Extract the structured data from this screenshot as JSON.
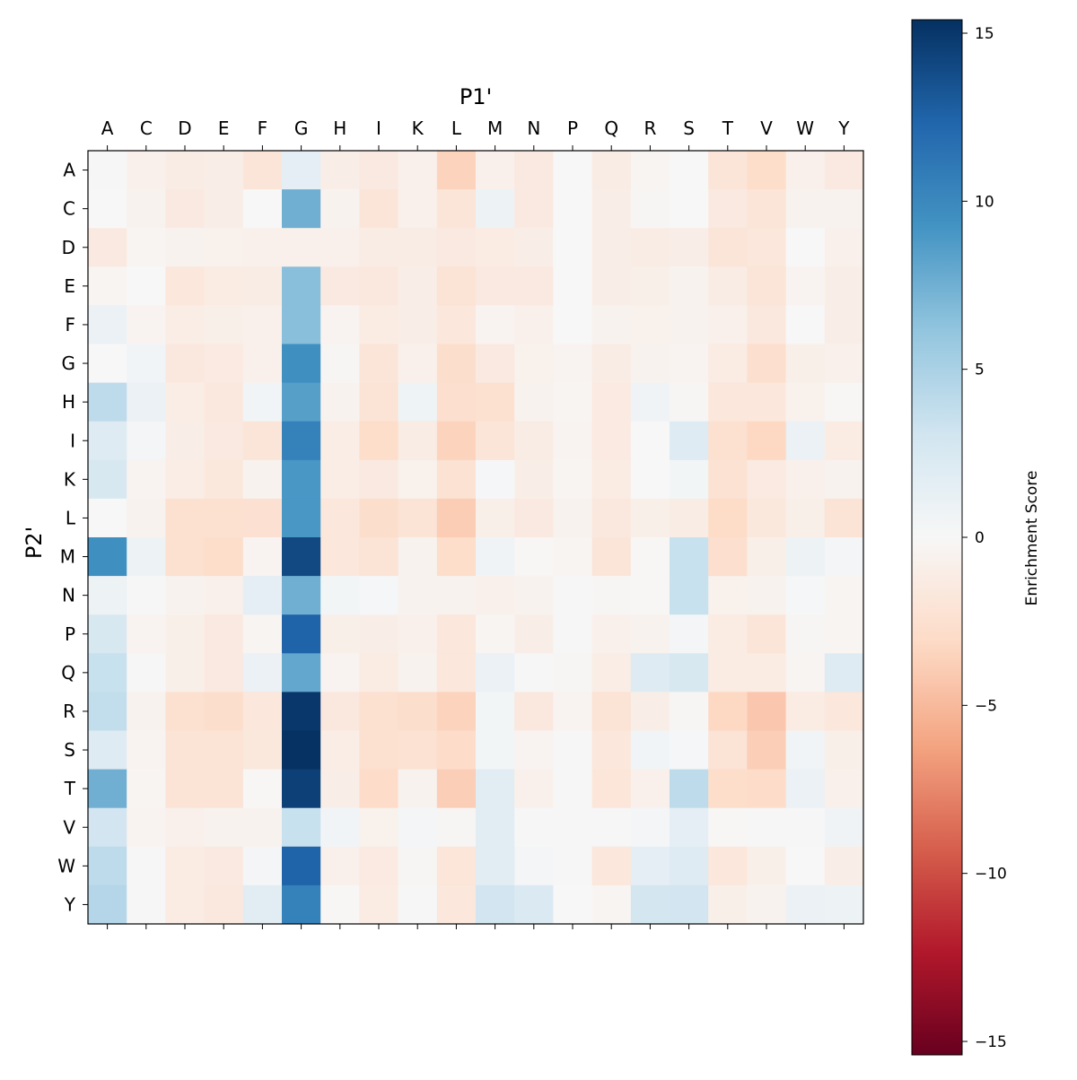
{
  "chart_data": {
    "type": "heatmap",
    "xlabel": "P1'",
    "ylabel": "P2'",
    "x_categories": [
      "A",
      "C",
      "D",
      "E",
      "F",
      "G",
      "H",
      "I",
      "K",
      "L",
      "M",
      "N",
      "P",
      "Q",
      "R",
      "S",
      "T",
      "V",
      "W",
      "Y"
    ],
    "y_categories": [
      "A",
      "C",
      "D",
      "E",
      "F",
      "G",
      "H",
      "I",
      "K",
      "L",
      "M",
      "N",
      "P",
      "Q",
      "R",
      "S",
      "T",
      "V",
      "W",
      "Y"
    ],
    "colormap": "RdBu",
    "vmin": -15.4,
    "vmax": 15.4,
    "colorbar": {
      "label": "Enrichment Score",
      "ticks": [
        15,
        10,
        5,
        0,
        -5,
        -10,
        -15
      ],
      "tick_labels": [
        "15",
        "10",
        "5",
        "0",
        "−5",
        "−10",
        "−15"
      ]
    },
    "values": [
      [
        0.1,
        -0.8,
        -1.2,
        -1.0,
        -2.0,
        1.5,
        -1.0,
        -1.5,
        -0.8,
        -3.5,
        -0.8,
        -1.5,
        0.0,
        -1.2,
        -0.3,
        0.0,
        -2.0,
        -2.8,
        -0.8,
        -1.5
      ],
      [
        0.0,
        -0.5,
        -1.5,
        -1.0,
        0.0,
        7.5,
        -0.5,
        -2.0,
        -0.8,
        -2.0,
        0.8,
        -1.5,
        0.0,
        -1.0,
        -0.2,
        0.0,
        -1.5,
        -2.0,
        -0.6,
        -0.5
      ],
      [
        -1.5,
        -0.3,
        -0.5,
        -0.7,
        -0.8,
        -0.8,
        -0.8,
        -1.2,
        -1.2,
        -1.5,
        -1.3,
        -1.0,
        0.0,
        -1.0,
        -1.2,
        -1.0,
        -2.0,
        -1.8,
        0.0,
        -0.8
      ],
      [
        -0.3,
        0.0,
        -1.8,
        -1.3,
        -1.2,
        6.5,
        -1.5,
        -1.6,
        -1.0,
        -2.2,
        -1.5,
        -1.5,
        0.0,
        -1.0,
        -0.9,
        -0.6,
        -1.2,
        -2.0,
        -0.4,
        -1.0
      ],
      [
        1.0,
        -0.4,
        -1.1,
        -0.9,
        -0.8,
        6.5,
        -0.4,
        -1.3,
        -1.0,
        -1.8,
        -0.4,
        -0.8,
        0.0,
        -0.6,
        -0.7,
        -0.5,
        -0.8,
        -1.6,
        0.0,
        -1.0
      ],
      [
        0.0,
        0.5,
        -1.6,
        -1.4,
        -0.8,
        9.5,
        -0.2,
        -2.0,
        -0.8,
        -2.7,
        -1.5,
        -0.7,
        -0.4,
        -1.2,
        -0.5,
        -0.4,
        -1.3,
        -2.6,
        -0.9,
        -0.8
      ],
      [
        4.0,
        1.0,
        -1.1,
        -1.6,
        0.5,
        8.5,
        -0.5,
        -2.1,
        0.7,
        -2.6,
        -2.5,
        -0.6,
        -0.3,
        -1.4,
        0.6,
        -0.2,
        -1.8,
        -1.8,
        -0.7,
        -0.1
      ],
      [
        2.0,
        0.3,
        -1.0,
        -1.5,
        -2.0,
        10.5,
        -1.1,
        -2.8,
        -1.2,
        -3.5,
        -2.0,
        -1.2,
        -0.4,
        -1.4,
        0.0,
        2.0,
        -2.5,
        -3.2,
        1.0,
        -1.3
      ],
      [
        2.5,
        -0.4,
        -1.1,
        -1.7,
        -0.5,
        9.0,
        -1.1,
        -1.5,
        -0.7,
        -2.3,
        0.2,
        -1.0,
        -0.3,
        -1.3,
        0.0,
        0.4,
        -2.3,
        -1.4,
        -0.8,
        -0.5
      ],
      [
        0.0,
        -0.5,
        -2.5,
        -2.5,
        -2.4,
        9.0,
        -1.8,
        -2.7,
        -2.2,
        -3.9,
        -0.9,
        -1.5,
        -0.6,
        -1.6,
        -0.9,
        -1.2,
        -3.0,
        -1.7,
        -0.9,
        -2.2
      ],
      [
        9.5,
        0.8,
        -2.5,
        -2.8,
        -0.4,
        14.0,
        -1.8,
        -2.2,
        -0.6,
        -2.8,
        0.6,
        -0.1,
        -0.3,
        -2.0,
        -0.1,
        3.5,
        -2.6,
        -0.9,
        0.8,
        0.3
      ],
      [
        0.8,
        0.1,
        -0.6,
        -0.8,
        1.5,
        7.5,
        0.4,
        0.2,
        -0.6,
        -0.5,
        -0.8,
        -0.5,
        0.1,
        -0.2,
        -0.1,
        3.5,
        -0.7,
        -0.6,
        0.2,
        -0.3
      ],
      [
        2.5,
        -0.4,
        -0.9,
        -1.5,
        -0.3,
        12.5,
        -0.9,
        -1.0,
        -0.8,
        -1.8,
        -0.3,
        -1.0,
        0.1,
        -0.8,
        -0.6,
        0.3,
        -1.3,
        -2.0,
        -0.2,
        -0.3
      ],
      [
        3.5,
        0.1,
        -0.9,
        -1.5,
        1.0,
        8.0,
        -0.4,
        -1.3,
        -0.6,
        -1.8,
        1.0,
        0.1,
        -0.2,
        -1.1,
        2.0,
        2.5,
        -1.3,
        -1.3,
        -0.3,
        2.0
      ],
      [
        3.8,
        -0.5,
        -2.5,
        -2.7,
        -1.8,
        15.0,
        -1.6,
        -2.5,
        -2.7,
        -3.5,
        0.4,
        -1.6,
        -0.4,
        -2.2,
        -1.0,
        -0.2,
        -3.2,
        -4.2,
        -1.3,
        -1.8
      ],
      [
        2.0,
        -0.4,
        -2.1,
        -2.2,
        -1.7,
        15.3,
        -1.1,
        -2.5,
        -2.3,
        -2.9,
        0.4,
        -0.4,
        0.1,
        -1.8,
        0.5,
        0.2,
        -2.2,
        -3.8,
        0.5,
        -0.9
      ],
      [
        7.5,
        -0.3,
        -2.1,
        -2.2,
        -0.1,
        14.5,
        -1.0,
        -2.9,
        -0.5,
        -3.8,
        1.8,
        -0.8,
        0.1,
        -1.9,
        -0.8,
        4.0,
        -2.8,
        -2.9,
        1.0,
        -0.8
      ],
      [
        3.0,
        -0.4,
        -0.8,
        -0.6,
        -0.5,
        3.5,
        0.5,
        -0.7,
        0.3,
        -0.2,
        1.8,
        0.1,
        0.1,
        0.1,
        0.3,
        1.5,
        -0.1,
        0.1,
        0.1,
        0.6
      ],
      [
        4.0,
        0.1,
        -1.3,
        -1.5,
        0.3,
        12.5,
        -0.8,
        -1.4,
        -0.2,
        -1.9,
        1.8,
        0.3,
        0.1,
        -1.8,
        1.5,
        2.0,
        -1.8,
        -0.9,
        0.0,
        -1.0
      ],
      [
        4.5,
        0.1,
        -1.3,
        -1.6,
        1.8,
        10.5,
        -0.1,
        -1.3,
        0.1,
        -1.8,
        3.0,
        2.3,
        0.0,
        -0.3,
        2.8,
        3.0,
        -0.9,
        -0.6,
        1.0,
        0.8
      ]
    ]
  }
}
